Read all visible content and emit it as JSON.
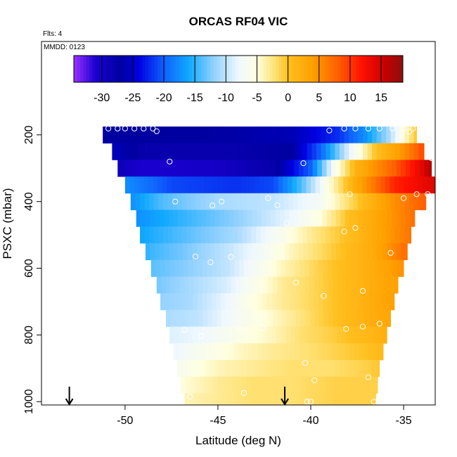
{
  "chart_data": {
    "type": "heatmap",
    "title": "ORCAS RF04 VIC",
    "subtitle": "Flts: 4",
    "annotation": "MMDD: 0123",
    "xlabel": "Latitude (deg N)",
    "ylabel": "PSXC (mbar)",
    "xlim": [
      -54.5,
      -33.3
    ],
    "ylim": [
      1010,
      -80
    ],
    "y_reversed": true,
    "x_ticks": [
      -50,
      -45,
      -40,
      -35
    ],
    "x_tick_labels": [
      "-50",
      "-45",
      "-40",
      "-35"
    ],
    "y_ticks": [
      200,
      400,
      600,
      800,
      1000
    ],
    "y_tick_labels": [
      "200",
      "400",
      "600",
      "800",
      "1000"
    ],
    "colorbar": {
      "range": [
        -34.5,
        18.5
      ],
      "ticks": [
        -30,
        -25,
        -20,
        -15,
        -10,
        -5,
        0,
        5,
        10,
        15
      ],
      "tick_labels": [
        "-30",
        "-25",
        "-20",
        "-15",
        "-10",
        "-5",
        "0",
        "5",
        "10",
        "15"
      ],
      "stops": [
        [
          -34.5,
          "#9b30ff"
        ],
        [
          -31,
          "#1a00d0"
        ],
        [
          -27,
          "#0000a0"
        ],
        [
          -24,
          "#0000e0"
        ],
        [
          -20,
          "#1060ff"
        ],
        [
          -16,
          "#10a8ff"
        ],
        [
          -12,
          "#90d0ff"
        ],
        [
          -8,
          "#f0f8ff"
        ],
        [
          -5,
          "#ffffe0"
        ],
        [
          -2,
          "#ffe070"
        ],
        [
          0,
          "#ffc020"
        ],
        [
          4,
          "#ffa000"
        ],
        [
          8,
          "#ff6000"
        ],
        [
          12,
          "#ff1000"
        ],
        [
          16,
          "#c00000"
        ],
        [
          18.5,
          "#8b1010"
        ]
      ]
    },
    "pressure_bands": [
      {
        "p": [
          175,
          225
        ],
        "lat_min": -51.2,
        "lat_max": -34.3
      },
      {
        "p": [
          225,
          275
        ],
        "lat_min": -50.7,
        "lat_max": -33.9
      },
      {
        "p": [
          275,
          325
        ],
        "lat_min": -50.4,
        "lat_max": -33.5
      },
      {
        "p": [
          325,
          375
        ],
        "lat_min": -50.0,
        "lat_max": -33.3
      },
      {
        "p": [
          375,
          425
        ],
        "lat_min": -49.7,
        "lat_max": -33.8
      },
      {
        "p": [
          425,
          475
        ],
        "lat_min": -49.4,
        "lat_max": -34.4
      },
      {
        "p": [
          475,
          525
        ],
        "lat_min": -49.2,
        "lat_max": -34.6
      },
      {
        "p": [
          525,
          575
        ],
        "lat_min": -48.9,
        "lat_max": -34.8
      },
      {
        "p": [
          575,
          625
        ],
        "lat_min": -48.6,
        "lat_max": -35.0
      },
      {
        "p": [
          625,
          675
        ],
        "lat_min": -48.3,
        "lat_max": -35.3
      },
      {
        "p": [
          675,
          725
        ],
        "lat_min": -48.1,
        "lat_max": -35.5
      },
      {
        "p": [
          725,
          775
        ],
        "lat_min": -47.8,
        "lat_max": -35.7
      },
      {
        "p": [
          775,
          825
        ],
        "lat_min": -47.6,
        "lat_max": -35.9
      },
      {
        "p": [
          825,
          875
        ],
        "lat_min": -47.4,
        "lat_max": -36.1
      },
      {
        "p": [
          875,
          925
        ],
        "lat_min": -47.2,
        "lat_max": -36.3
      },
      {
        "p": [
          925,
          975
        ],
        "lat_min": -47.0,
        "lat_max": -36.4
      },
      {
        "p": [
          975,
          1010
        ],
        "lat_min": -46.8,
        "lat_max": -36.5
      }
    ],
    "field_profiles": [
      {
        "p": 200,
        "knots": [
          [
            -51,
            -27
          ],
          [
            -46,
            -27
          ],
          [
            -41,
            -26
          ],
          [
            -38.5,
            -22
          ],
          [
            -37,
            -17
          ],
          [
            -35.8,
            -11
          ],
          [
            -35,
            -5
          ],
          [
            -34.3,
            0
          ]
        ]
      },
      {
        "p": 250,
        "knots": [
          [
            -51,
            -25
          ],
          [
            -49,
            -28
          ],
          [
            -44,
            -28
          ],
          [
            -41,
            -27
          ],
          [
            -39.5,
            -20
          ],
          [
            -38,
            -9
          ],
          [
            -36.5,
            0
          ],
          [
            -35,
            5
          ],
          [
            -34,
            9
          ]
        ]
      },
      {
        "p": 300,
        "knots": [
          [
            -51,
            -28
          ],
          [
            -49,
            -31
          ],
          [
            -45,
            -30
          ],
          [
            -42,
            -28
          ],
          [
            -40,
            -20
          ],
          [
            -38.8,
            -7
          ],
          [
            -37.5,
            2
          ],
          [
            -35.5,
            8
          ],
          [
            -34,
            14
          ],
          [
            -33.5,
            17
          ]
        ]
      },
      {
        "p": 350,
        "knots": [
          [
            -51,
            -16
          ],
          [
            -47.5,
            -21
          ],
          [
            -44,
            -22
          ],
          [
            -42,
            -21
          ],
          [
            -40.5,
            -14
          ],
          [
            -39,
            -5
          ],
          [
            -37.5,
            3
          ],
          [
            -35.5,
            11
          ],
          [
            -33.5,
            14
          ]
        ]
      },
      {
        "p": 400,
        "knots": [
          [
            -50,
            -18
          ],
          [
            -48,
            -14
          ],
          [
            -45,
            -11
          ],
          [
            -42,
            -10
          ],
          [
            -39.5,
            -7
          ],
          [
            -38,
            -2
          ],
          [
            -36,
            4
          ],
          [
            -34,
            8
          ]
        ]
      },
      {
        "p": 450,
        "knots": [
          [
            -50,
            -18
          ],
          [
            -47,
            -15
          ],
          [
            -44,
            -12
          ],
          [
            -41,
            -8
          ],
          [
            -39.5,
            -5
          ],
          [
            -38,
            0
          ],
          [
            -36,
            4
          ],
          [
            -34.5,
            7
          ]
        ]
      },
      {
        "p": 500,
        "knots": [
          [
            -50,
            -17
          ],
          [
            -47,
            -14
          ],
          [
            -44,
            -11
          ],
          [
            -42,
            -7
          ],
          [
            -40,
            -3
          ],
          [
            -37.5,
            1
          ],
          [
            -35.5,
            5
          ],
          [
            -34.5,
            7
          ]
        ]
      },
      {
        "p": 550,
        "knots": [
          [
            -49,
            -15
          ],
          [
            -47,
            -13
          ],
          [
            -44.5,
            -10
          ],
          [
            -42.5,
            -7
          ],
          [
            -41,
            -4
          ],
          [
            -39,
            -1
          ],
          [
            -36.5,
            3
          ],
          [
            -35,
            7
          ]
        ]
      },
      {
        "p": 600,
        "knots": [
          [
            -49,
            -14
          ],
          [
            -46.5,
            -12
          ],
          [
            -44.5,
            -10
          ],
          [
            -43,
            -7
          ],
          [
            -41.5,
            -4
          ],
          [
            -39.5,
            -1
          ],
          [
            -37,
            2
          ],
          [
            -35,
            5
          ]
        ]
      },
      {
        "p": 650,
        "knots": [
          [
            -48.5,
            -13
          ],
          [
            -46.5,
            -11
          ],
          [
            -44.5,
            -9
          ],
          [
            -43,
            -6
          ],
          [
            -41.5,
            -3
          ],
          [
            -39.5,
            -1
          ],
          [
            -37,
            2
          ],
          [
            -35.3,
            4
          ]
        ]
      },
      {
        "p": 700,
        "knots": [
          [
            -48.5,
            -12
          ],
          [
            -46.5,
            -11
          ],
          [
            -44.5,
            -8
          ],
          [
            -43,
            -5
          ],
          [
            -41.5,
            -3
          ],
          [
            -39.5,
            -1
          ],
          [
            -37,
            2
          ],
          [
            -35.5,
            4
          ]
        ]
      },
      {
        "p": 750,
        "knots": [
          [
            -48,
            -11
          ],
          [
            -46,
            -10
          ],
          [
            -44,
            -7
          ],
          [
            -42.5,
            -5
          ],
          [
            -41,
            -3
          ],
          [
            -39.5,
            -1
          ],
          [
            -37,
            2
          ],
          [
            -36,
            3
          ]
        ]
      },
      {
        "p": 800,
        "knots": [
          [
            -48,
            -9
          ],
          [
            -46,
            -8
          ],
          [
            -44,
            -6
          ],
          [
            -42,
            -4
          ],
          [
            -40.5,
            -2
          ],
          [
            -39,
            -1
          ],
          [
            -37,
            1
          ],
          [
            -36,
            2
          ]
        ]
      },
      {
        "p": 850,
        "knots": [
          [
            -47.5,
            -8
          ],
          [
            -45.5,
            -6
          ],
          [
            -43.5,
            -4
          ],
          [
            -42,
            -3
          ],
          [
            -40,
            -2
          ],
          [
            -38.5,
            -1
          ],
          [
            -37,
            0
          ],
          [
            -36,
            1
          ]
        ]
      },
      {
        "p": 900,
        "knots": [
          [
            -47.5,
            -7
          ],
          [
            -45,
            -4
          ],
          [
            -43,
            -3
          ],
          [
            -41,
            -2
          ],
          [
            -39,
            -2
          ],
          [
            -37,
            -1
          ],
          [
            -36,
            0
          ]
        ]
      },
      {
        "p": 950,
        "knots": [
          [
            -47,
            -5
          ],
          [
            -45,
            -3
          ],
          [
            -43,
            -2
          ],
          [
            -41,
            -2
          ],
          [
            -38.5,
            -1
          ],
          [
            -36.5,
            -1
          ]
        ]
      },
      {
        "p": 1000,
        "knots": [
          [
            -47,
            -4
          ],
          [
            -45,
            -3
          ],
          [
            -43,
            -2
          ],
          [
            -41,
            -2
          ],
          [
            -38.5,
            -1
          ],
          [
            -36.5,
            -1
          ]
        ]
      }
    ],
    "observations": [
      {
        "lat": -50.9,
        "p": 181
      },
      {
        "lat": -50.4,
        "p": 181
      },
      {
        "lat": -50.0,
        "p": 181
      },
      {
        "lat": -49.5,
        "p": 181
      },
      {
        "lat": -49.0,
        "p": 181
      },
      {
        "lat": -48.5,
        "p": 181
      },
      {
        "lat": -48.3,
        "p": 189
      },
      {
        "lat": -47.6,
        "p": 280
      },
      {
        "lat": -39.0,
        "p": 187
      },
      {
        "lat": -38.2,
        "p": 181
      },
      {
        "lat": -37.6,
        "p": 181
      },
      {
        "lat": -36.9,
        "p": 181
      },
      {
        "lat": -36.3,
        "p": 181
      },
      {
        "lat": -35.6,
        "p": 181
      },
      {
        "lat": -35.0,
        "p": 181
      },
      {
        "lat": -34.5,
        "p": 181
      },
      {
        "lat": -34.7,
        "p": 190
      },
      {
        "lat": -34.0,
        "p": 190
      },
      {
        "lat": -40.4,
        "p": 285
      },
      {
        "lat": -33.5,
        "p": 270
      },
      {
        "lat": -47.3,
        "p": 400
      },
      {
        "lat": -45.3,
        "p": 412
      },
      {
        "lat": -44.8,
        "p": 400
      },
      {
        "lat": -42.3,
        "p": 390
      },
      {
        "lat": -41.8,
        "p": 411
      },
      {
        "lat": -41.3,
        "p": 465
      },
      {
        "lat": -37.9,
        "p": 378
      },
      {
        "lat": -35.0,
        "p": 390
      },
      {
        "lat": -34.3,
        "p": 378
      },
      {
        "lat": -33.7,
        "p": 378
      },
      {
        "lat": -38.2,
        "p": 490
      },
      {
        "lat": -37.6,
        "p": 479
      },
      {
        "lat": -46.2,
        "p": 565
      },
      {
        "lat": -45.4,
        "p": 582
      },
      {
        "lat": -44.3,
        "p": 566
      },
      {
        "lat": -35.7,
        "p": 554
      },
      {
        "lat": -40.8,
        "p": 643
      },
      {
        "lat": -39.3,
        "p": 683
      },
      {
        "lat": -37.2,
        "p": 668
      },
      {
        "lat": -46.8,
        "p": 785
      },
      {
        "lat": -45.9,
        "p": 803
      },
      {
        "lat": -43.8,
        "p": 785
      },
      {
        "lat": -42.6,
        "p": 779
      },
      {
        "lat": -38.1,
        "p": 782
      },
      {
        "lat": -37.2,
        "p": 775
      },
      {
        "lat": -36.3,
        "p": 766
      },
      {
        "lat": -40.3,
        "p": 884
      },
      {
        "lat": -39.8,
        "p": 936
      },
      {
        "lat": -36.9,
        "p": 927
      },
      {
        "lat": -46.5,
        "p": 985
      },
      {
        "lat": -43.6,
        "p": 974
      },
      {
        "lat": -40.2,
        "p": 1000
      },
      {
        "lat": -40.0,
        "p": 1000
      },
      {
        "lat": -36.6,
        "p": 1000
      }
    ],
    "arrows": [
      {
        "lat": -53.0,
        "p_start": 955,
        "p_end": 1008
      },
      {
        "lat": -41.4,
        "p_start": 955,
        "p_end": 1008
      }
    ]
  }
}
